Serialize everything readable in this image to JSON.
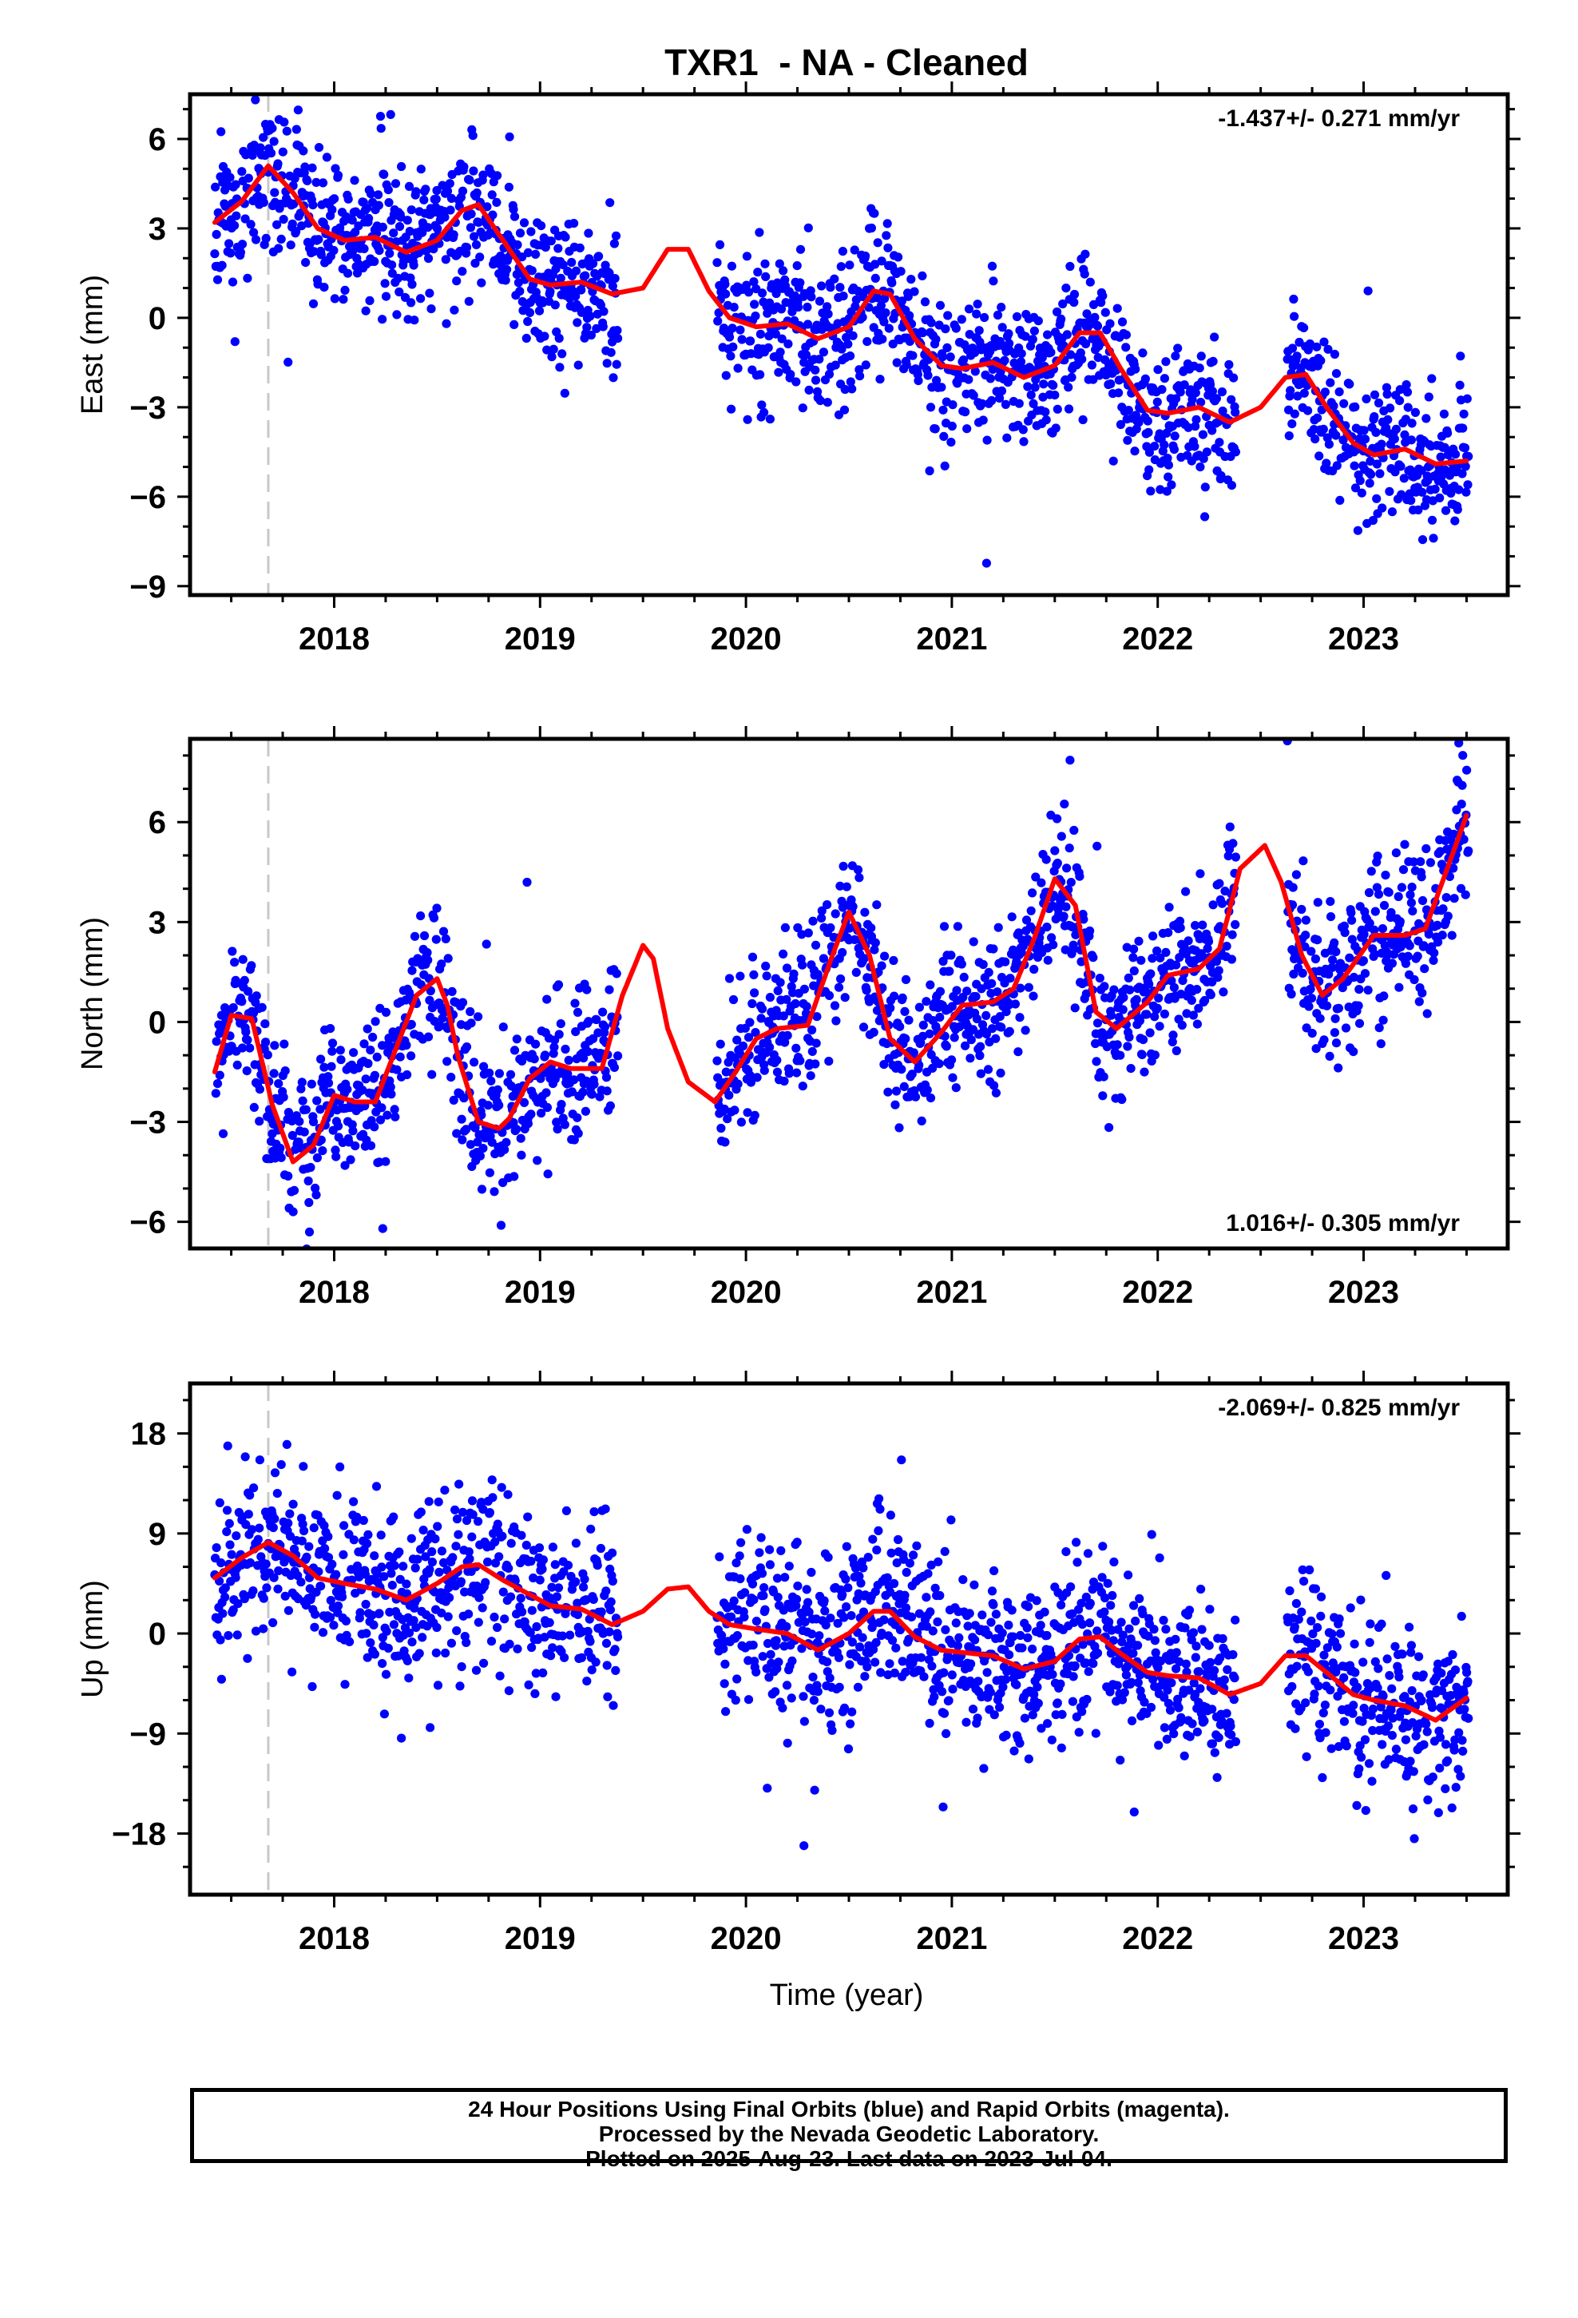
{
  "title": "TXR1  - NA - Cleaned",
  "x_axis_label": "Time (year)",
  "footer": {
    "line1": "24 Hour Positions Using Final Orbits (blue) and Rapid Orbits (magenta).",
    "line2": "Processed by the Nevada Geodetic Laboratory.",
    "line3": "Plotted on 2025-Aug-23. Last data on 2023-Jul-04."
  },
  "colors": {
    "points": "#0000ff",
    "model": "#ff0000",
    "reference_line": "#c8c8c8",
    "axes": "#000000"
  },
  "chart_data": [
    {
      "type": "scatter",
      "panel": "east",
      "ylabel": "East (mm)",
      "rate_label": "-1.437+/- 0.271 mm/yr",
      "rate_position": "top-right",
      "xlim": [
        2017.3,
        2023.7
      ],
      "ylim": [
        -9.3,
        7.5
      ],
      "xticks": [
        2018,
        2019,
        2020,
        2021,
        2022,
        2023
      ],
      "yticks": [
        -9,
        -6,
        -3,
        0,
        3,
        6
      ],
      "ytick_labels": [
        "−9",
        "−6",
        "−3",
        "0",
        "3",
        "6"
      ],
      "reference_line_x": 2017.68,
      "data_ranges": [
        [
          2017.42,
          2019.38
        ],
        [
          2019.86,
          2022.38
        ],
        [
          2022.63,
          2023.51
        ]
      ],
      "scatter_sigma": 1.2,
      "seed": 11,
      "model_series": {
        "name": "model",
        "x": [
          2017.42,
          2017.55,
          2017.68,
          2017.8,
          2017.92,
          2018.05,
          2018.2,
          2018.35,
          2018.5,
          2018.62,
          2018.7,
          2018.82,
          2018.95,
          2019.05,
          2019.2,
          2019.35,
          2019.5,
          2019.62,
          2019.72,
          2019.82,
          2019.92,
          2020.05,
          2020.2,
          2020.35,
          2020.5,
          2020.62,
          2020.7,
          2020.82,
          2020.95,
          2021.05,
          2021.2,
          2021.35,
          2021.5,
          2021.62,
          2021.72,
          2021.82,
          2021.95,
          2022.05,
          2022.2,
          2022.35,
          2022.5,
          2022.62,
          2022.72,
          2022.82,
          2022.95,
          2023.05,
          2023.2,
          2023.35,
          2023.5
        ],
        "y": [
          3.2,
          3.9,
          5.1,
          4.2,
          3.0,
          2.6,
          2.7,
          2.2,
          2.6,
          3.6,
          3.8,
          2.6,
          1.3,
          1.1,
          1.2,
          0.8,
          1.0,
          2.3,
          2.3,
          0.9,
          0.0,
          -0.3,
          -0.2,
          -0.7,
          -0.3,
          0.9,
          0.8,
          -0.7,
          -1.6,
          -1.7,
          -1.5,
          -2.0,
          -1.6,
          -0.5,
          -0.5,
          -1.7,
          -3.1,
          -3.2,
          -3.0,
          -3.5,
          -3.0,
          -2.0,
          -1.9,
          -3.0,
          -4.2,
          -4.6,
          -4.4,
          -4.9,
          -4.8
        ]
      }
    },
    {
      "type": "scatter",
      "panel": "north",
      "ylabel": "North (mm)",
      "rate_label": "1.016+/- 0.305 mm/yr",
      "rate_position": "bottom-right",
      "xlim": [
        2017.3,
        2023.7
      ],
      "ylim": [
        -6.8,
        8.5
      ],
      "xticks": [
        2018,
        2019,
        2020,
        2021,
        2022,
        2023
      ],
      "yticks": [
        -6,
        -3,
        0,
        3,
        6
      ],
      "ytick_labels": [
        "−6",
        "−3",
        "0",
        "3",
        "6"
      ],
      "reference_line_x": 2017.68,
      "data_ranges": [
        [
          2017.42,
          2019.38
        ],
        [
          2019.86,
          2022.38
        ],
        [
          2022.63,
          2023.51
        ]
      ],
      "scatter_sigma": 1.1,
      "seed": 23,
      "model_series": {
        "name": "model",
        "x": [
          2017.42,
          2017.5,
          2017.6,
          2017.7,
          2017.8,
          2017.9,
          2018.0,
          2018.1,
          2018.2,
          2018.3,
          2018.4,
          2018.5,
          2018.55,
          2018.6,
          2018.7,
          2018.8,
          2018.85,
          2018.95,
          2019.05,
          2019.15,
          2019.3,
          2019.4,
          2019.5,
          2019.55,
          2019.62,
          2019.72,
          2019.85,
          2019.95,
          2020.05,
          2020.15,
          2020.3,
          2020.42,
          2020.5,
          2020.6,
          2020.7,
          2020.82,
          2020.95,
          2021.05,
          2021.2,
          2021.3,
          2021.4,
          2021.5,
          2021.6,
          2021.7,
          2021.8,
          2021.95,
          2022.05,
          2022.2,
          2022.3,
          2022.4,
          2022.52,
          2022.6,
          2022.7,
          2022.8,
          2022.9,
          2023.05,
          2023.2,
          2023.3,
          2023.4,
          2023.5
        ],
        "y": [
          -1.5,
          0.2,
          0.1,
          -2.5,
          -4.2,
          -3.7,
          -2.2,
          -2.4,
          -2.4,
          -0.8,
          0.8,
          1.3,
          0.5,
          -1.0,
          -3.0,
          -3.2,
          -2.9,
          -1.7,
          -1.2,
          -1.4,
          -1.4,
          0.8,
          2.3,
          1.9,
          -0.2,
          -1.8,
          -2.4,
          -1.5,
          -0.5,
          -0.2,
          -0.1,
          2.0,
          3.3,
          2.0,
          -0.5,
          -1.2,
          -0.3,
          0.5,
          0.6,
          1.0,
          2.5,
          4.3,
          3.5,
          0.3,
          -0.2,
          0.6,
          1.4,
          1.6,
          2.2,
          4.6,
          5.3,
          4.2,
          2.0,
          0.8,
          1.3,
          2.6,
          2.6,
          2.8,
          4.5,
          6.2
        ]
      }
    },
    {
      "type": "scatter",
      "panel": "up",
      "ylabel": "Up (mm)",
      "xlabel": "Time (year)",
      "rate_label": "-2.069+/- 0.825 mm/yr",
      "rate_position": "top-right",
      "xlim": [
        2017.3,
        2023.7
      ],
      "ylim": [
        -23.5,
        22.5
      ],
      "xticks": [
        2018,
        2019,
        2020,
        2021,
        2022,
        2023
      ],
      "yticks": [
        -18,
        -9,
        0,
        9,
        18
      ],
      "ytick_labels": [
        "−18",
        "−9",
        "0",
        "9",
        "18"
      ],
      "reference_line_x": 2017.68,
      "data_ranges": [
        [
          2017.42,
          2019.38
        ],
        [
          2019.86,
          2022.38
        ],
        [
          2022.63,
          2023.51
        ]
      ],
      "scatter_sigma": 3.8,
      "seed": 37,
      "model_series": {
        "name": "model",
        "x": [
          2017.42,
          2017.55,
          2017.68,
          2017.8,
          2017.92,
          2018.05,
          2018.2,
          2018.35,
          2018.5,
          2018.62,
          2018.7,
          2018.82,
          2018.95,
          2019.05,
          2019.2,
          2019.35,
          2019.5,
          2019.62,
          2019.72,
          2019.82,
          2019.92,
          2020.05,
          2020.2,
          2020.35,
          2020.5,
          2020.62,
          2020.7,
          2020.82,
          2020.95,
          2021.05,
          2021.2,
          2021.35,
          2021.5,
          2021.62,
          2021.72,
          2021.82,
          2021.95,
          2022.05,
          2022.2,
          2022.35,
          2022.5,
          2022.62,
          2022.72,
          2022.82,
          2022.95,
          2023.05,
          2023.2,
          2023.35,
          2023.5
        ],
        "y": [
          5.0,
          6.8,
          8.2,
          7.0,
          5.0,
          4.5,
          4.0,
          3.0,
          4.5,
          6.0,
          6.2,
          4.8,
          3.5,
          2.5,
          2.2,
          0.8,
          2.0,
          4.0,
          4.2,
          2.0,
          0.8,
          0.4,
          0.0,
          -1.5,
          0.0,
          2.0,
          2.0,
          -0.3,
          -1.5,
          -1.7,
          -2.0,
          -3.2,
          -2.5,
          -0.5,
          -0.3,
          -1.8,
          -3.5,
          -3.8,
          -4.0,
          -5.5,
          -4.5,
          -2.0,
          -2.0,
          -3.5,
          -5.5,
          -6.0,
          -6.5,
          -7.8,
          -5.8
        ]
      }
    }
  ]
}
